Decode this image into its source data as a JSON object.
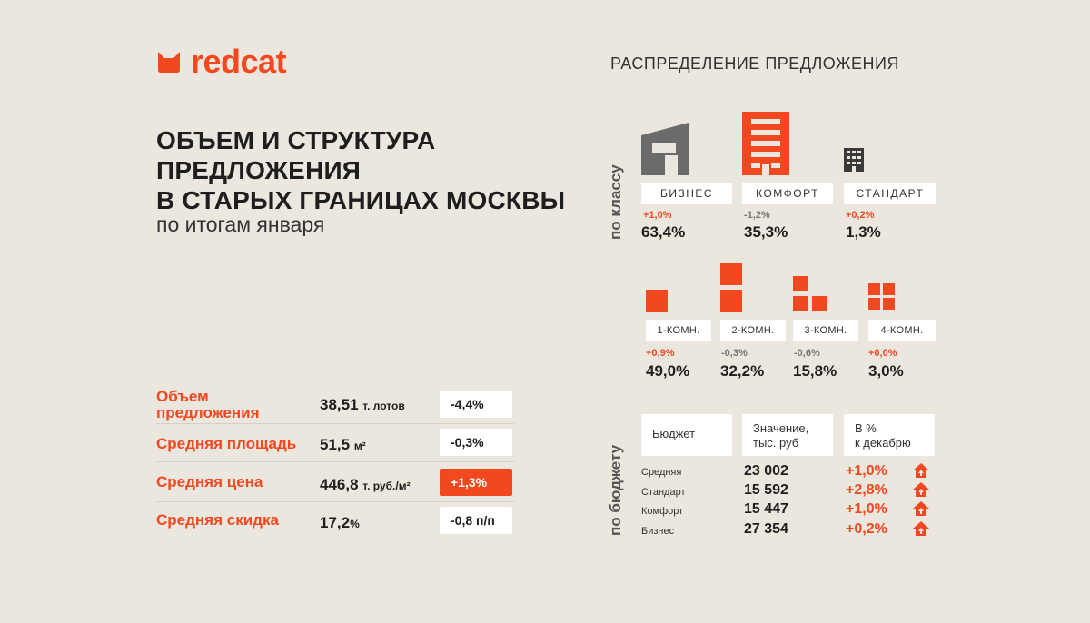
{
  "brand": {
    "name": "redcat",
    "accent": "#f2481f"
  },
  "header": {
    "title_lines": [
      "ОБЪЕМ И СТРУКТУРА",
      "ПРЕДЛОЖЕНИЯ",
      "В СТАРЫХ ГРАНИЦАХ МОСКВЫ"
    ],
    "subtitle": "по итогам января"
  },
  "metrics": [
    {
      "label_line1": "Объем",
      "label_line2": "предложения",
      "value": "38,51",
      "unit": "т. лотов",
      "change": "-4,4%",
      "highlight": false
    },
    {
      "label": "Средняя площадь",
      "value": "51,5",
      "unit": "м²",
      "change": "-0,3%",
      "highlight": false
    },
    {
      "label": "Средняя цена",
      "value": "446,8",
      "unit": "т. руб./м²",
      "change": "+1,3%",
      "highlight": true
    },
    {
      "label": "Средняя скидка",
      "value": "17,2",
      "unit": "%",
      "change": "-0,8 п/п",
      "highlight": false
    }
  ],
  "distribution": {
    "title": "РАСПРЕДЕЛЕНИЕ ПРЕДЛОЖЕНИЯ",
    "by_class_label": "по классу",
    "classes": [
      {
        "name": "БИЗНЕС",
        "delta": "+1,0%",
        "delta_positive": true,
        "share": "63,4%",
        "icon": "business-building-icon"
      },
      {
        "name": "КОМФОРТ",
        "delta": "-1,2%",
        "delta_positive": false,
        "share": "35,3%",
        "icon": "comfort-building-icon"
      },
      {
        "name": "СТАНДАРТ",
        "delta": "+0,2%",
        "delta_positive": true,
        "share": "1,3%",
        "icon": "standard-building-icon"
      }
    ],
    "rooms": [
      {
        "name": "1-КОМН.",
        "delta": "+0,9%",
        "delta_positive": true,
        "share": "49,0%"
      },
      {
        "name": "2-КОМН.",
        "delta": "-0,3%",
        "delta_positive": false,
        "share": "32,2%"
      },
      {
        "name": "3-КОМН.",
        "delta": "-0,6%",
        "delta_positive": false,
        "share": "15,8%"
      },
      {
        "name": "4-КОМН.",
        "delta": "+0,0%",
        "delta_positive": true,
        "share": "3,0%"
      }
    ]
  },
  "budget": {
    "label": "по бюджету",
    "headers": {
      "name": "Бюджет",
      "value_line1": "Значение,",
      "value_line2": "тыс. руб",
      "pct_line1": "В %",
      "pct_line2": "к декабрю"
    },
    "rows": [
      {
        "name": "Средняя",
        "value": "23 002",
        "pct": "+1,0%",
        "icon": "house-up-icon"
      },
      {
        "name": "Стандарт",
        "value": "15 592",
        "pct": "+2,8%",
        "icon": "house-up-icon"
      },
      {
        "name": "Комфорт",
        "value": "15 447",
        "pct": "+1,0%",
        "icon": "house-up-icon"
      },
      {
        "name": "Бизнес",
        "value": "27 354",
        "pct": "+0,2%",
        "icon": "house-up-icon"
      }
    ]
  }
}
